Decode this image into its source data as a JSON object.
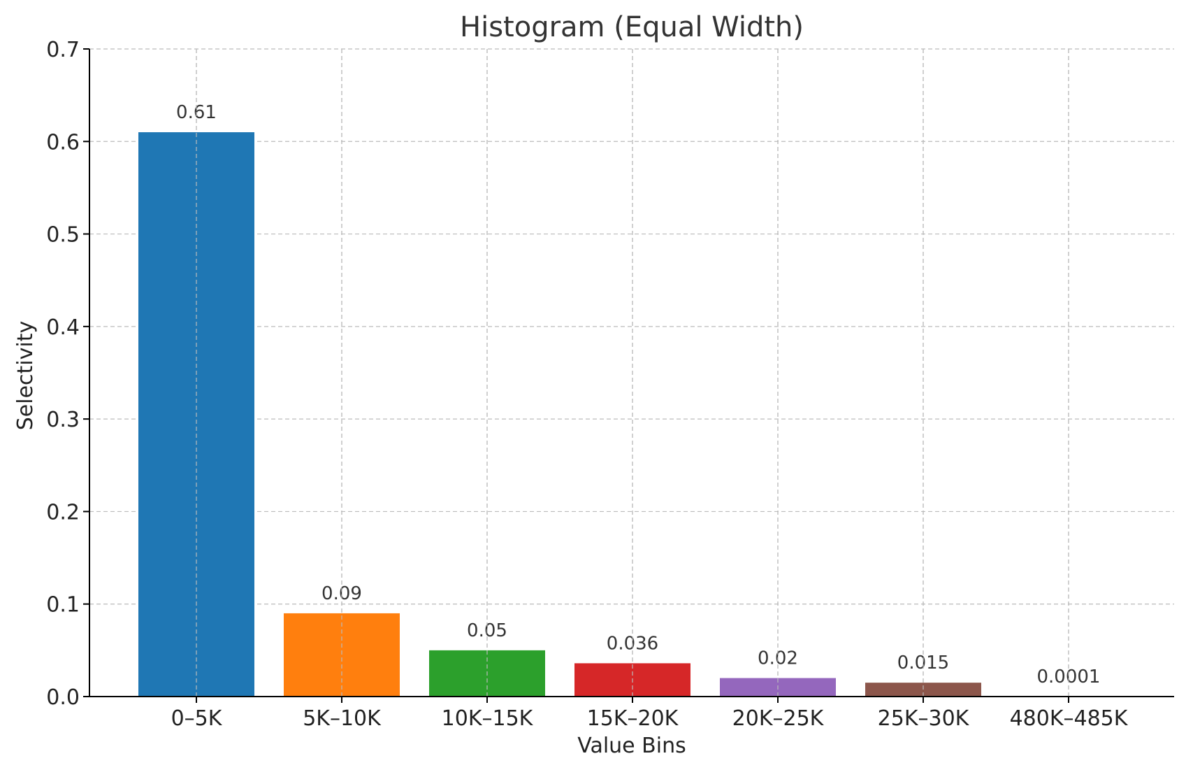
{
  "chart_data": {
    "type": "bar",
    "title": "Histogram (Equal Width)",
    "xlabel": "Value Bins",
    "ylabel": "Selectivity",
    "categories": [
      "0–5K",
      "5K–10K",
      "10K–15K",
      "15K–20K",
      "20K–25K",
      "25K–30K",
      "480K–485K"
    ],
    "values": [
      0.61,
      0.09,
      0.05,
      0.036,
      0.02,
      0.015,
      0.0001
    ],
    "value_labels": [
      "0.61",
      "0.09",
      "0.05",
      "0.036",
      "0.02",
      "0.015",
      "0.0001"
    ],
    "colors": [
      "#1f77b4",
      "#ff7f0e",
      "#2ca02c",
      "#d62728",
      "#9467bd",
      "#8c564b",
      "#e377c2"
    ],
    "ylim": [
      0,
      0.7
    ],
    "yticks": [
      0.0,
      0.1,
      0.2,
      0.3,
      0.4,
      0.5,
      0.6,
      0.7
    ],
    "ytick_labels": [
      "0.0",
      "0.1",
      "0.2",
      "0.3",
      "0.4",
      "0.5",
      "0.6",
      "0.7"
    ],
    "grid": true,
    "legend": "none"
  }
}
